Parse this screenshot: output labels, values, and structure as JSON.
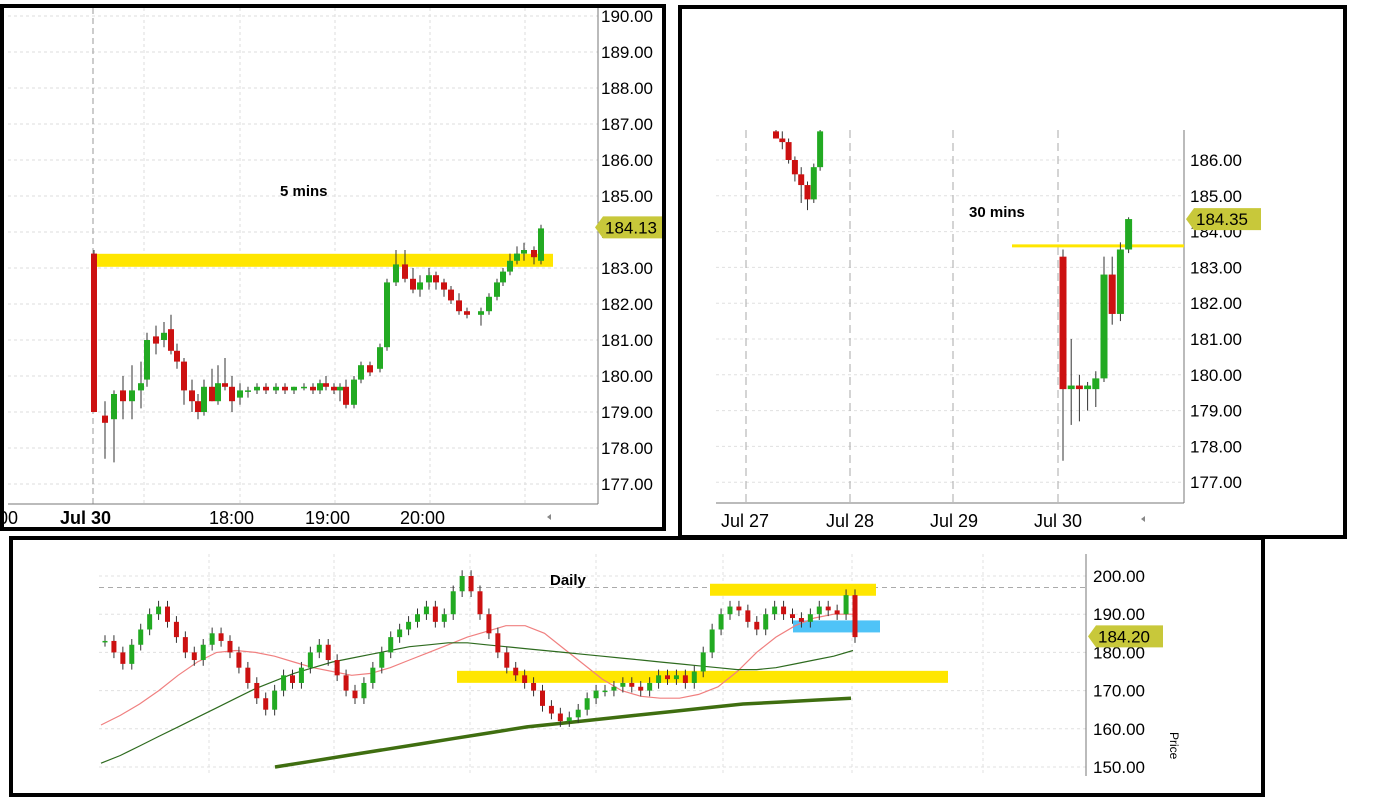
{
  "chart_data": [
    {
      "type": "candlestick",
      "title": "5 mins",
      "xlabel": "",
      "ylabel": "",
      "ylim": [
        176.5,
        190.2
      ],
      "y_ticks": [
        "190.00",
        "189.00",
        "188.00",
        "187.00",
        "186.00",
        "185.00",
        "184.00",
        "183.00",
        "182.00",
        "181.00",
        "180.00",
        "179.00",
        "178.00",
        "177.00"
      ],
      "x_ticks": [
        "00",
        "Jul 30",
        "18:00",
        "19:00",
        "20:00"
      ],
      "current_price_label": "184.13",
      "current_price": 184.13,
      "horizontal_levels": [
        {
          "price": 183.2,
          "color": "#ffe600"
        }
      ],
      "grid": true,
      "candles": [
        [
          183.4,
          183.5,
          179.0,
          179.0
        ],
        [
          178.9,
          179.3,
          177.7,
          178.7
        ],
        [
          178.8,
          179.6,
          177.6,
          179.5
        ],
        [
          179.6,
          180.0,
          178.8,
          179.3
        ],
        [
          179.3,
          180.3,
          178.8,
          179.6
        ],
        [
          179.6,
          180.4,
          179.1,
          179.8
        ],
        [
          179.9,
          181.2,
          179.7,
          181.0
        ],
        [
          181.1,
          181.4,
          180.6,
          180.9
        ],
        [
          181.0,
          181.5,
          180.8,
          181.2
        ],
        [
          181.3,
          181.7,
          180.6,
          180.7
        ],
        [
          180.7,
          180.9,
          180.2,
          180.4
        ],
        [
          180.4,
          180.5,
          179.2,
          179.6
        ],
        [
          179.6,
          179.9,
          179.0,
          179.3
        ],
        [
          179.3,
          179.5,
          178.8,
          179.0
        ],
        [
          179.0,
          179.9,
          178.9,
          179.7
        ],
        [
          179.7,
          180.2,
          179.3,
          179.3
        ],
        [
          179.3,
          180.3,
          179.2,
          179.8
        ],
        [
          179.8,
          180.5,
          179.6,
          179.7
        ],
        [
          179.7,
          180.0,
          179.0,
          179.3
        ],
        [
          179.4,
          179.8,
          179.2,
          179.6
        ],
        [
          179.6,
          179.7,
          179.4,
          179.6
        ],
        [
          179.6,
          179.8,
          179.5,
          179.7
        ],
        [
          179.7,
          179.8,
          179.5,
          179.6
        ],
        [
          179.6,
          179.8,
          179.5,
          179.7
        ],
        [
          179.7,
          179.8,
          179.5,
          179.6
        ],
        [
          179.6,
          179.7,
          179.5,
          179.7
        ],
        [
          179.7,
          179.8,
          179.6,
          179.7
        ],
        [
          179.7,
          179.8,
          179.5,
          179.6
        ],
        [
          179.6,
          179.9,
          179.5,
          179.8
        ],
        [
          179.8,
          180.0,
          179.6,
          179.7
        ],
        [
          179.7,
          179.8,
          179.5,
          179.6
        ],
        [
          179.6,
          179.8,
          179.3,
          179.7
        ],
        [
          179.7,
          179.9,
          179.1,
          179.2
        ],
        [
          179.2,
          180.0,
          179.1,
          179.9
        ],
        [
          179.9,
          180.4,
          179.8,
          180.3
        ],
        [
          180.3,
          180.4,
          180.0,
          180.1
        ],
        [
          180.2,
          180.9,
          180.1,
          180.8
        ],
        [
          180.8,
          182.7,
          180.7,
          182.6
        ],
        [
          182.6,
          183.5,
          182.5,
          183.1
        ],
        [
          183.1,
          183.5,
          182.6,
          182.7
        ],
        [
          182.7,
          183.0,
          182.3,
          182.4
        ],
        [
          182.4,
          182.8,
          182.2,
          182.6
        ],
        [
          182.6,
          183.0,
          182.4,
          182.8
        ],
        [
          182.8,
          182.9,
          182.4,
          182.6
        ],
        [
          182.6,
          182.7,
          182.2,
          182.4
        ],
        [
          182.4,
          182.5,
          182.0,
          182.1
        ],
        [
          182.1,
          182.3,
          181.7,
          181.8
        ],
        [
          181.8,
          181.9,
          181.6,
          181.7
        ],
        [
          181.7,
          181.9,
          181.4,
          181.8
        ],
        [
          181.8,
          182.3,
          181.7,
          182.2
        ],
        [
          182.2,
          182.7,
          182.1,
          182.6
        ],
        [
          182.6,
          183.0,
          182.5,
          182.9
        ],
        [
          182.9,
          183.4,
          182.8,
          183.2
        ],
        [
          183.2,
          183.6,
          183.1,
          183.4
        ],
        [
          183.4,
          183.7,
          183.2,
          183.5
        ],
        [
          183.5,
          183.6,
          183.1,
          183.3
        ],
        [
          183.2,
          184.2,
          183.1,
          184.1
        ]
      ]
    },
    {
      "type": "candlestick",
      "title": "30 mins",
      "xlabel": "",
      "ylabel": "",
      "ylim": [
        176.3,
        186.8
      ],
      "y_ticks": [
        "186.00",
        "185.00",
        "184.00",
        "183.00",
        "182.00",
        "181.00",
        "180.00",
        "179.00",
        "178.00",
        "177.00"
      ],
      "x_ticks": [
        "Jul 27",
        "Jul 28",
        "Jul 29",
        "Jul 30"
      ],
      "current_price_label": "184.35",
      "current_price": 184.35,
      "horizontal_levels": [
        {
          "price": 183.6,
          "color": "#ffe600"
        }
      ],
      "grid": true,
      "candles_day1": [
        [
          186.8,
          186.9,
          186.6,
          186.6
        ],
        [
          186.6,
          186.8,
          186.3,
          186.5
        ],
        [
          186.5,
          186.6,
          185.9,
          186.0
        ],
        [
          186.0,
          186.1,
          185.4,
          185.6
        ],
        [
          185.6,
          185.8,
          184.8,
          185.3
        ],
        [
          185.3,
          185.4,
          184.6,
          184.9
        ],
        [
          184.9,
          185.9,
          184.8,
          185.8
        ],
        [
          185.8,
          186.9,
          185.7,
          186.8
        ]
      ],
      "candles_day4": [
        [
          183.3,
          183.5,
          177.6,
          179.6
        ],
        [
          179.6,
          181.0,
          178.6,
          179.7
        ],
        [
          179.7,
          180.0,
          178.7,
          179.6
        ],
        [
          179.6,
          179.8,
          179.0,
          179.7
        ],
        [
          179.6,
          180.1,
          179.1,
          179.9
        ],
        [
          179.9,
          183.3,
          179.8,
          182.8
        ],
        [
          182.8,
          183.3,
          181.4,
          181.7
        ],
        [
          181.7,
          183.7,
          181.5,
          183.5
        ],
        [
          183.5,
          184.4,
          183.4,
          184.35
        ]
      ]
    },
    {
      "type": "candlestick",
      "title": "Daily",
      "xlabel": "",
      "ylabel": "Price",
      "ylim": [
        147.5,
        204.5
      ],
      "y_ticks": [
        "200.00",
        "190.00",
        "180.00",
        "170.00",
        "160.00",
        "150.00"
      ],
      "current_price_label": "184.20",
      "current_price": 184.2,
      "horizontal_levels": [
        {
          "price": 196.4,
          "color": "#ffe600"
        },
        {
          "price": 186.8,
          "color": "#4fc3f7"
        },
        {
          "price": 173.6,
          "color": "#ffe600"
        },
        {
          "price": 197.0,
          "color": "#aaaaaa"
        }
      ],
      "moving_averages": [
        {
          "color": "#f08080",
          "values": [
            161.0,
            163.5,
            166.5,
            170.0,
            174.0,
            177.5,
            180.0,
            180.5,
            180.0,
            179.0,
            177.5,
            176.0,
            175.0,
            174.0,
            174.5,
            176.0,
            178.0,
            180.0,
            182.0,
            184.0,
            185.5,
            187.0,
            187.0,
            185.0,
            181.0,
            177.0,
            173.0,
            170.0,
            168.5,
            168.0,
            168.0,
            169.0,
            171.0,
            175.0,
            180.0,
            184.0,
            187.0,
            189.0,
            190.0,
            190.0
          ]
        },
        {
          "color": "#2e6b1f",
          "values": [
            151.0,
            153.0,
            155.5,
            158.0,
            160.5,
            163.0,
            165.5,
            168.0,
            170.5,
            172.5,
            174.5,
            176.0,
            177.5,
            178.5,
            179.5,
            180.5,
            181.5,
            182.0,
            182.5,
            182.5,
            182.0,
            181.5,
            181.0,
            180.5,
            180.0,
            179.5,
            179.0,
            178.5,
            178.0,
            177.5,
            177.0,
            176.5,
            176.0,
            175.5,
            175.5,
            176.0,
            177.0,
            178.0,
            179.0,
            180.5
          ]
        },
        {
          "color": "#3f6e10",
          "values": [
            150.0,
            151.5,
            153.0,
            154.5,
            156.0,
            157.5,
            159.0,
            160.5,
            161.5,
            162.5,
            163.5,
            164.5,
            165.5,
            166.5,
            167.0,
            167.5,
            168.0
          ]
        }
      ],
      "grid": true
    }
  ]
}
